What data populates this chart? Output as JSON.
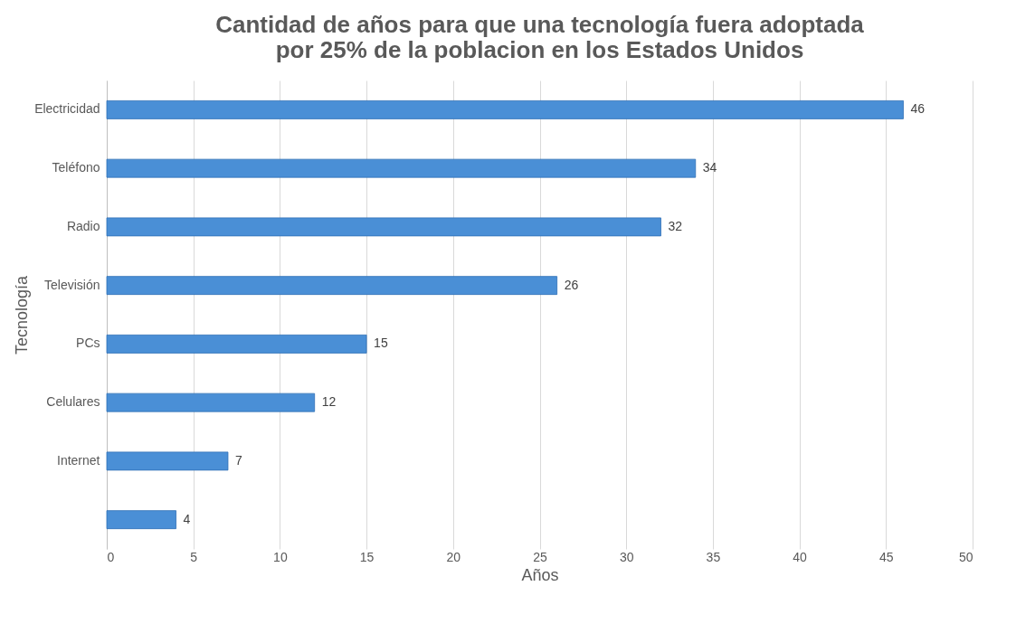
{
  "chart_data": {
    "type": "bar",
    "orientation": "horizontal",
    "title": "Cantidad de años para que una tecnología fuera adoptada por 25% de la poblacion en los Estados Unidos",
    "xlabel": "Años",
    "ylabel": "Tecnología",
    "categories": [
      "Electricidad",
      "Teléfono",
      "Radio",
      "Televisión",
      "PCs",
      "Celulares",
      "Internet",
      null
    ],
    "values": [
      46,
      34,
      32,
      26,
      15,
      12,
      7,
      4
    ],
    "color": "#4a8fd6",
    "xlim": [
      0,
      50
    ],
    "xticks": [
      0,
      5,
      10,
      15,
      20,
      25,
      30,
      35,
      40,
      45,
      50
    ],
    "grid": "x",
    "data_labels": true
  }
}
